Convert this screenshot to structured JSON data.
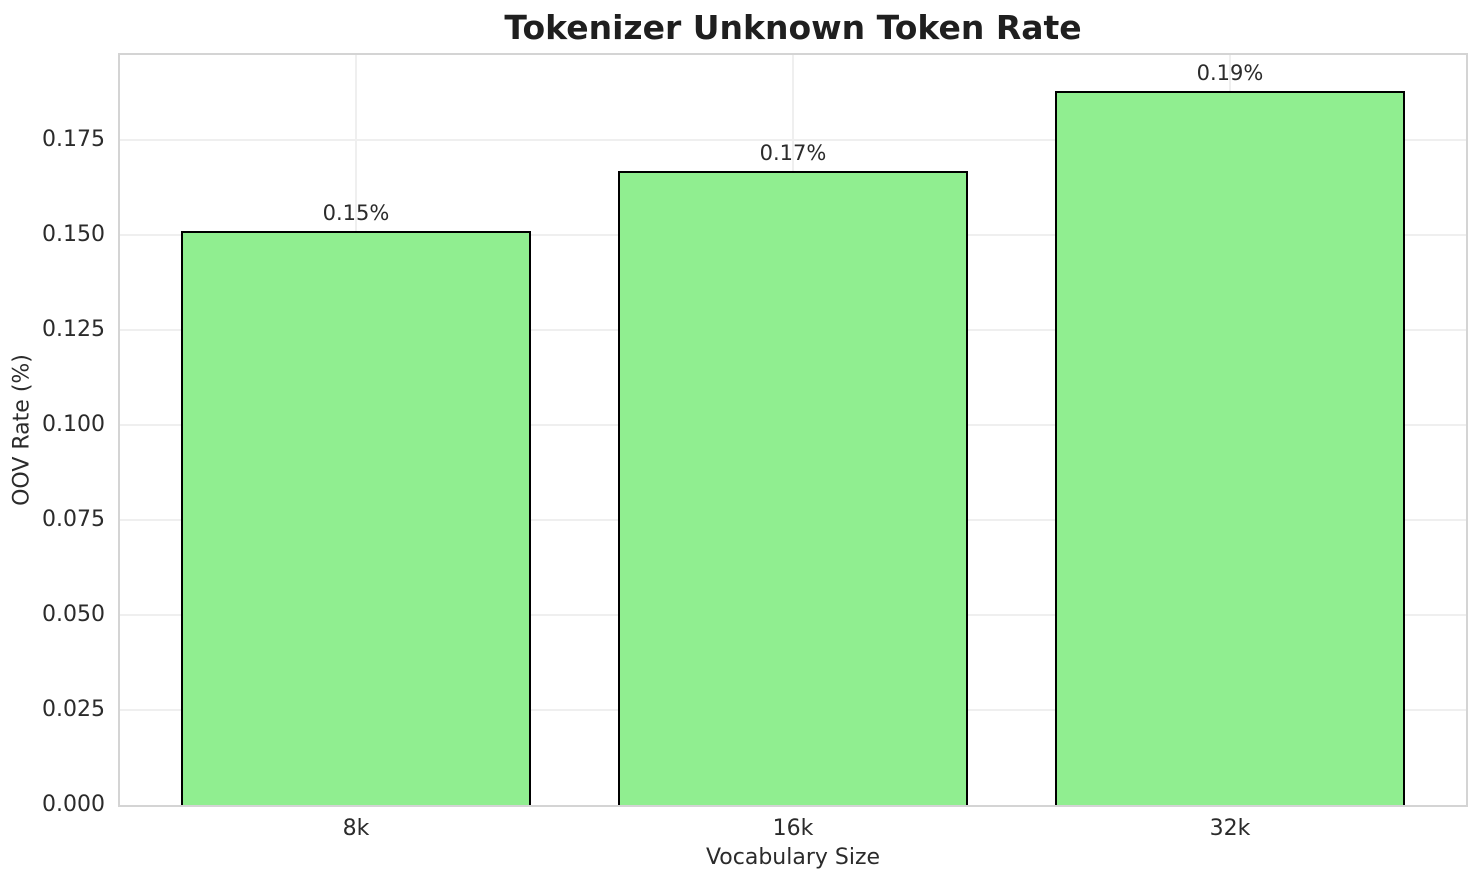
{
  "chart_data": {
    "type": "bar",
    "title": "Tokenizer Unknown Token Rate",
    "xlabel": "Vocabulary Size",
    "ylabel": "OOV Rate (%)",
    "categories": [
      "8k",
      "16k",
      "32k"
    ],
    "values": [
      0.151,
      0.167,
      0.188
    ],
    "bar_labels": [
      "0.15%",
      "0.17%",
      "0.19%"
    ],
    "ylim": [
      0,
      0.1974
    ],
    "yticks": [
      0.0,
      0.025,
      0.05,
      0.075,
      0.1,
      0.125,
      0.15,
      0.175
    ],
    "ytick_labels": [
      "0.000",
      "0.025",
      "0.050",
      "0.075",
      "0.100",
      "0.125",
      "0.150",
      "0.175"
    ],
    "grid": true,
    "legend_position": "none",
    "colors": {
      "bar_fill": "#90EE90",
      "bar_edge": "#000000",
      "gridline": "#efefef",
      "spine": "#d4d4d4",
      "title_text": "#1f1f1f",
      "label_text": "#2b2b2b",
      "background": "#ffffff"
    }
  }
}
